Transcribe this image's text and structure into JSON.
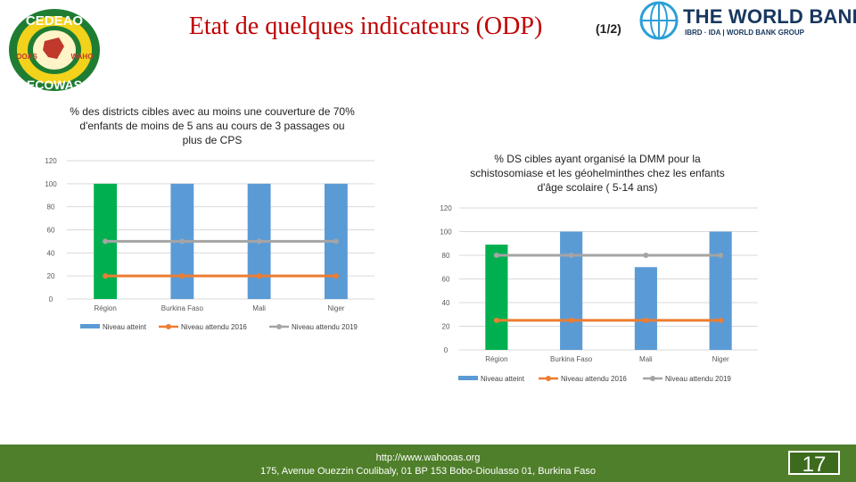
{
  "header": {
    "title": "Etat de quelques indicateurs (ODP)",
    "page_fraction": "(1/2)"
  },
  "logos": {
    "ecowas_top": "CEDEAO",
    "ecowas_left": "OOAS",
    "ecowas_right": "WAHO",
    "ecowas_bottom": "ECOWAS",
    "worldbank_name": "THE WORLD BANK",
    "worldbank_sub": "IBRD · IDA | WORLD BANK GROUP"
  },
  "footer": {
    "url": "http://www.wahooas.org",
    "address": "175, Avenue Ouezzin Coulibaly, 01 BP 153 Bobo-Dioulasso 01, Burkina Faso",
    "slide_number": "17"
  },
  "colors": {
    "region_bar": "#00b050",
    "country_bar": "#5b9bd5",
    "expected_2016": "#ed7d31",
    "expected_2019": "#a5a5a5",
    "footer_bg": "#4f7f2a",
    "title_red": "#c00000"
  },
  "chart_data": [
    {
      "type": "bar",
      "title": "% des districts cibles avec au moins une couverture de 70% d'enfants de moins de 5 ans au cours de 3 passages ou plus de CPS",
      "categories": [
        "Région",
        "Burkina Faso",
        "Mali",
        "Niger"
      ],
      "ylim": [
        0,
        120
      ],
      "yticks": [
        0,
        20,
        40,
        60,
        80,
        100,
        120
      ],
      "grid": true,
      "legend_position": "bottom",
      "series": [
        {
          "name": "Niveau atteint",
          "kind": "bar",
          "values": [
            100,
            100,
            100,
            100
          ],
          "color_first": "#00b050",
          "color": "#5b9bd5"
        },
        {
          "name": "Niveau attendu 2016",
          "kind": "line",
          "values": [
            20,
            20,
            20,
            20
          ],
          "color": "#ed7d31"
        },
        {
          "name": "Niveau attendu 2019",
          "kind": "line",
          "values": [
            50,
            50,
            50,
            50
          ],
          "color": "#a5a5a5"
        }
      ]
    },
    {
      "type": "bar",
      "title": "% DS cibles ayant organisé la DMM pour la schistosomiase et les géohelminthes chez les enfants d'âge scolaire ( 5-14 ans)",
      "categories": [
        "Région",
        "Burkina Faso",
        "Mali",
        "Niger"
      ],
      "ylim": [
        0,
        120
      ],
      "yticks": [
        0,
        20,
        40,
        60,
        80,
        100,
        120
      ],
      "grid": true,
      "legend_position": "bottom",
      "series": [
        {
          "name": "Niveau atteint",
          "kind": "bar",
          "values": [
            89,
            100,
            70,
            100
          ],
          "color_first": "#00b050",
          "color": "#5b9bd5"
        },
        {
          "name": "Niveau attendu 2016",
          "kind": "line",
          "values": [
            25,
            25,
            25,
            25
          ],
          "color": "#ed7d31"
        },
        {
          "name": "Niveau attendu 2019",
          "kind": "line",
          "values": [
            80,
            80,
            80,
            80
          ],
          "color": "#a5a5a5"
        }
      ]
    }
  ]
}
